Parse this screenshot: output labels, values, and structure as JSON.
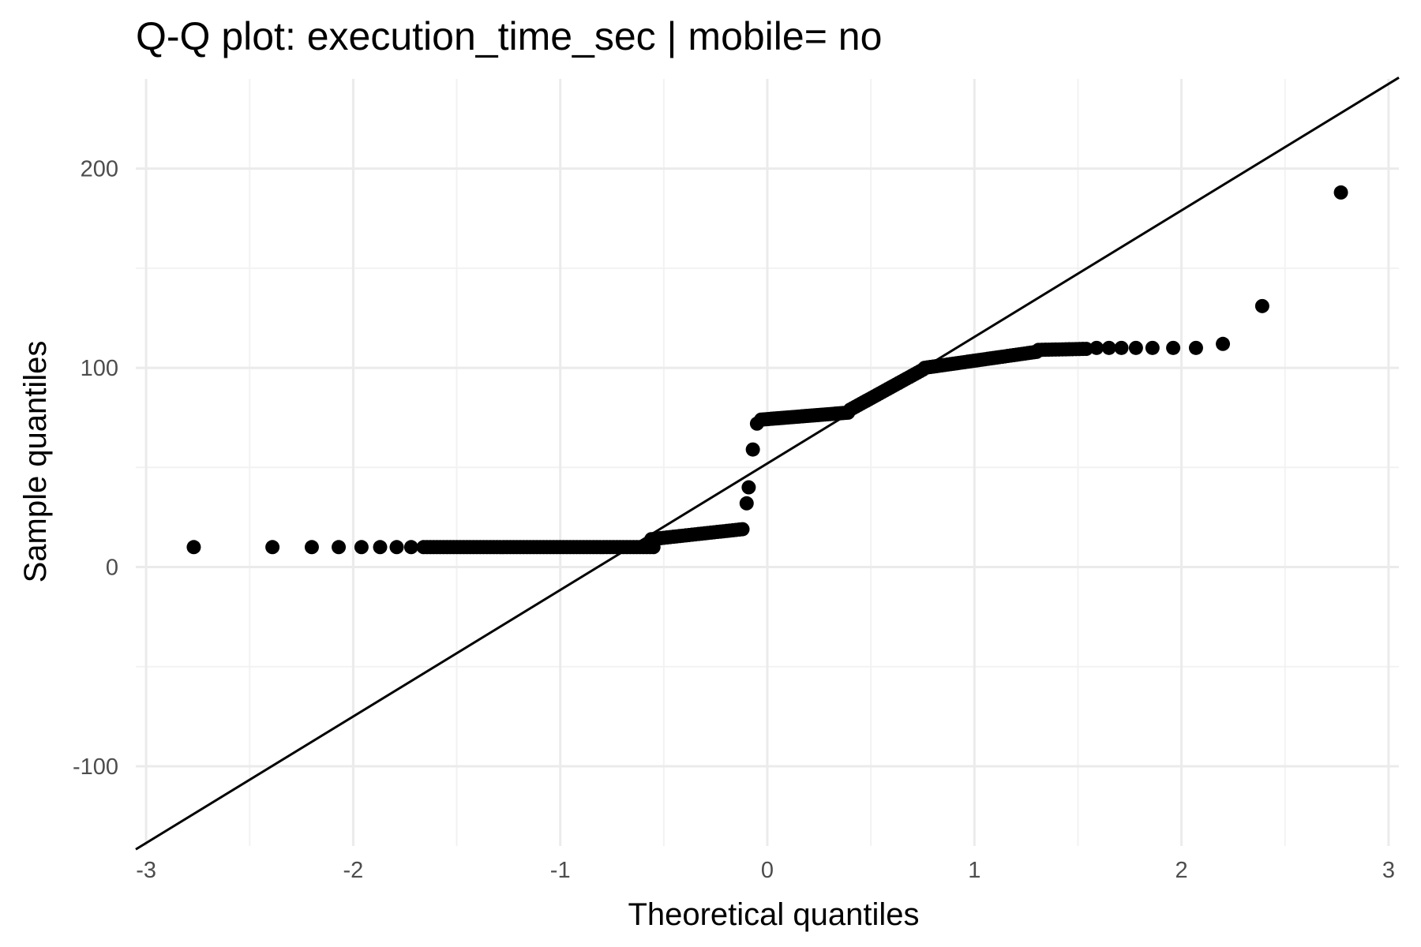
{
  "chart_data": {
    "type": "scatter",
    "title": "Q-Q plot: execution_time_sec | mobile= no",
    "xlabel": "Theoretical quantiles",
    "ylabel": "Sample quantiles",
    "xlim": [
      -3.05,
      3.05
    ],
    "ylim": [
      -140,
      245
    ],
    "x_ticks": [
      -3,
      -2,
      -1,
      0,
      1,
      2,
      3
    ],
    "x_tick_labels": [
      "-3",
      "-2",
      "-1",
      "0",
      "1",
      "2",
      "3"
    ],
    "y_ticks": [
      -100,
      0,
      100,
      200
    ],
    "y_tick_labels": [
      "-100",
      "0",
      "100",
      "200"
    ],
    "grid": true,
    "reference_line": {
      "intercept": 52,
      "slope": 63.5
    },
    "segments": [
      {
        "x_start": -2.77,
        "x_end": -2.77,
        "y_start": 10,
        "y_end": 10,
        "n": 1
      },
      {
        "x_start": -2.39,
        "x_end": -2.39,
        "y_start": 10,
        "y_end": 10,
        "n": 1
      },
      {
        "x_start": -2.2,
        "x_end": -2.2,
        "y_start": 10,
        "y_end": 10,
        "n": 1
      },
      {
        "x_start": -2.07,
        "x_end": -2.07,
        "y_start": 10,
        "y_end": 10,
        "n": 1
      },
      {
        "x_start": -1.96,
        "x_end": -1.96,
        "y_start": 10,
        "y_end": 10,
        "n": 1
      },
      {
        "x_start": -1.87,
        "x_end": -1.87,
        "y_start": 10,
        "y_end": 10,
        "n": 1
      },
      {
        "x_start": -1.79,
        "x_end": -1.79,
        "y_start": 10,
        "y_end": 10,
        "n": 1
      },
      {
        "x_start": -1.72,
        "x_end": -1.72,
        "y_start": 10,
        "y_end": 10,
        "n": 1
      },
      {
        "x_start": -1.66,
        "x_end": -0.55,
        "y_start": 10,
        "y_end": 10,
        "n": 70
      },
      {
        "x_start": -0.56,
        "x_end": -0.12,
        "y_start": 14,
        "y_end": 19,
        "n": 30
      },
      {
        "x_start": -0.1,
        "x_end": -0.1,
        "y_start": 32,
        "y_end": 32,
        "n": 1
      },
      {
        "x_start": -0.09,
        "x_end": -0.09,
        "y_start": 40,
        "y_end": 40,
        "n": 1
      },
      {
        "x_start": -0.07,
        "x_end": -0.07,
        "y_start": 59,
        "y_end": 59,
        "n": 1
      },
      {
        "x_start": -0.05,
        "x_end": -0.05,
        "y_start": 72,
        "y_end": 72,
        "n": 1
      },
      {
        "x_start": -0.03,
        "x_end": 0.39,
        "y_start": 74,
        "y_end": 77.5,
        "n": 35
      },
      {
        "x_start": 0.4,
        "x_end": 0.75,
        "y_start": 79,
        "y_end": 99,
        "n": 28
      },
      {
        "x_start": 0.76,
        "x_end": 1.3,
        "y_start": 100,
        "y_end": 108,
        "n": 40
      },
      {
        "x_start": 1.31,
        "x_end": 1.54,
        "y_start": 109,
        "y_end": 109.5,
        "n": 15
      },
      {
        "x_start": 1.59,
        "x_end": 1.59,
        "y_start": 110,
        "y_end": 110,
        "n": 1
      },
      {
        "x_start": 1.65,
        "x_end": 1.65,
        "y_start": 110,
        "y_end": 110,
        "n": 1
      },
      {
        "x_start": 1.71,
        "x_end": 1.71,
        "y_start": 110,
        "y_end": 110,
        "n": 1
      },
      {
        "x_start": 1.78,
        "x_end": 1.78,
        "y_start": 110,
        "y_end": 110,
        "n": 1
      },
      {
        "x_start": 1.86,
        "x_end": 1.86,
        "y_start": 110,
        "y_end": 110,
        "n": 1
      },
      {
        "x_start": 1.96,
        "x_end": 1.96,
        "y_start": 110,
        "y_end": 110,
        "n": 1
      },
      {
        "x_start": 2.07,
        "x_end": 2.07,
        "y_start": 110,
        "y_end": 110,
        "n": 1
      },
      {
        "x_start": 2.2,
        "x_end": 2.2,
        "y_start": 112,
        "y_end": 112,
        "n": 1
      },
      {
        "x_start": 2.39,
        "x_end": 2.39,
        "y_start": 131,
        "y_end": 131,
        "n": 1
      },
      {
        "x_start": 2.77,
        "x_end": 2.77,
        "y_start": 188,
        "y_end": 188,
        "n": 1
      }
    ]
  }
}
